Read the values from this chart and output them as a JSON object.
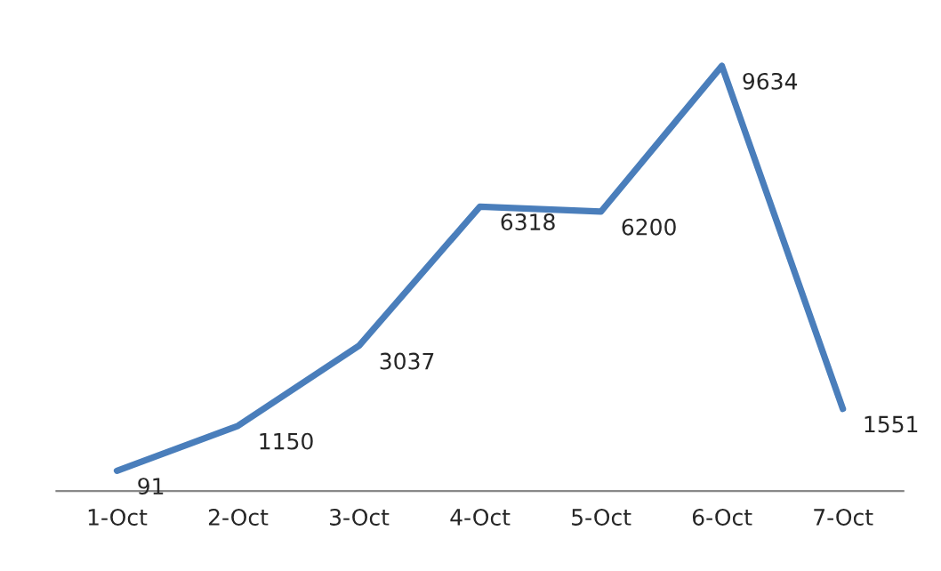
{
  "chart_data": {
    "type": "line",
    "categories": [
      "1-Oct",
      "2-Oct",
      "3-Oct",
      "4-Oct",
      "5-Oct",
      "6-Oct",
      "7-Oct"
    ],
    "series": [
      {
        "color": "#4a7ebb",
        "values": [
          91,
          1150,
          3037,
          6318,
          6200,
          9634,
          1551
        ]
      }
    ],
    "data_labels": true,
    "grid": false,
    "legend": false,
    "tick_labels": "x",
    "marker": "none",
    "line_style": "solid"
  }
}
